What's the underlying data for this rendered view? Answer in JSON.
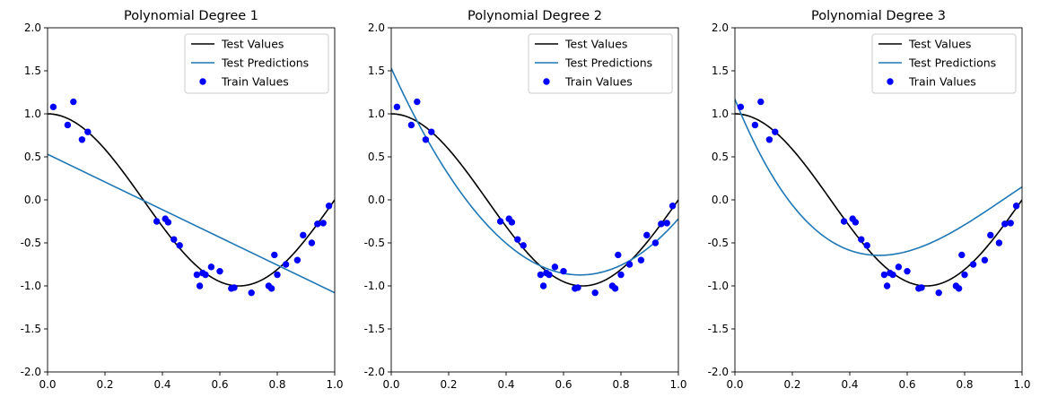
{
  "chart_data": [
    {
      "type": "line",
      "title": "Polynomial Degree 1",
      "xlabel": "",
      "ylabel": "",
      "xlim": [
        0,
        1
      ],
      "ylim": [
        -2,
        2
      ],
      "xticks": [
        "0.0",
        "0.2",
        "0.4",
        "0.6",
        "0.8",
        "1.0"
      ],
      "yticks": [
        "2.0",
        "1.5",
        "1.0",
        "0.5",
        "0.0",
        "-0.5",
        "-1.0",
        "-1.5",
        "-2.0"
      ],
      "grid": false,
      "legend_position": "top-right",
      "series": [
        {
          "name": "Test Values",
          "kind": "line",
          "color": "#000000",
          "function": "cos(1.5*pi*x)"
        },
        {
          "name": "Test Predictions",
          "kind": "line",
          "color": "#1f77b4",
          "x": [
            0,
            1
          ],
          "y": [
            0.53,
            -1.08
          ]
        },
        {
          "name": "Train Values",
          "kind": "scatter",
          "color": "#0000ff",
          "points": [
            [
              0.02,
              1.08
            ],
            [
              0.07,
              0.87
            ],
            [
              0.09,
              1.14
            ],
            [
              0.12,
              0.7
            ],
            [
              0.14,
              0.79
            ],
            [
              0.38,
              -0.25
            ],
            [
              0.41,
              -0.22
            ],
            [
              0.42,
              -0.26
            ],
            [
              0.44,
              -0.46
            ],
            [
              0.46,
              -0.53
            ],
            [
              0.52,
              -0.87
            ],
            [
              0.53,
              -1.0
            ],
            [
              0.54,
              -0.85
            ],
            [
              0.55,
              -0.87
            ],
            [
              0.57,
              -0.78
            ],
            [
              0.6,
              -0.83
            ],
            [
              0.64,
              -1.03
            ],
            [
              0.65,
              -1.02
            ],
            [
              0.71,
              -1.08
            ],
            [
              0.77,
              -1.0
            ],
            [
              0.78,
              -1.03
            ],
            [
              0.79,
              -0.64
            ],
            [
              0.8,
              -0.87
            ],
            [
              0.83,
              -0.75
            ],
            [
              0.87,
              -0.7
            ],
            [
              0.89,
              -0.41
            ],
            [
              0.92,
              -0.5
            ],
            [
              0.94,
              -0.28
            ],
            [
              0.96,
              -0.27
            ],
            [
              0.98,
              -0.07
            ]
          ]
        }
      ]
    },
    {
      "type": "line",
      "title": "Polynomial Degree 2",
      "xlabel": "",
      "ylabel": "",
      "xlim": [
        0,
        1
      ],
      "ylim": [
        -2,
        2
      ],
      "xticks": [
        "0.0",
        "0.2",
        "0.4",
        "0.6",
        "0.8",
        "1.0"
      ],
      "yticks": [
        "2.0",
        "1.5",
        "1.0",
        "0.5",
        "0.0",
        "-0.5",
        "-1.0",
        "-1.5",
        "-2.0"
      ],
      "grid": false,
      "legend_position": "top-right",
      "series": [
        {
          "name": "Test Values",
          "kind": "line",
          "color": "#000000",
          "function": "cos(1.5*pi*x)"
        },
        {
          "name": "Test Predictions",
          "kind": "line",
          "color": "#1f77b4",
          "coefficients": [
            1.53,
            -7.31,
            5.56
          ]
        },
        {
          "name": "Train Values",
          "kind": "scatter",
          "color": "#0000ff",
          "points": [
            [
              0.02,
              1.08
            ],
            [
              0.07,
              0.87
            ],
            [
              0.09,
              1.14
            ],
            [
              0.12,
              0.7
            ],
            [
              0.14,
              0.79
            ],
            [
              0.38,
              -0.25
            ],
            [
              0.41,
              -0.22
            ],
            [
              0.42,
              -0.26
            ],
            [
              0.44,
              -0.46
            ],
            [
              0.46,
              -0.53
            ],
            [
              0.52,
              -0.87
            ],
            [
              0.53,
              -1.0
            ],
            [
              0.54,
              -0.85
            ],
            [
              0.55,
              -0.87
            ],
            [
              0.57,
              -0.78
            ],
            [
              0.6,
              -0.83
            ],
            [
              0.64,
              -1.03
            ],
            [
              0.65,
              -1.02
            ],
            [
              0.71,
              -1.08
            ],
            [
              0.77,
              -1.0
            ],
            [
              0.78,
              -1.03
            ],
            [
              0.79,
              -0.64
            ],
            [
              0.8,
              -0.87
            ],
            [
              0.83,
              -0.75
            ],
            [
              0.87,
              -0.7
            ],
            [
              0.89,
              -0.41
            ],
            [
              0.92,
              -0.5
            ],
            [
              0.94,
              -0.28
            ],
            [
              0.96,
              -0.27
            ],
            [
              0.98,
              -0.07
            ]
          ]
        }
      ]
    },
    {
      "type": "line",
      "title": "Polynomial Degree 3",
      "xlabel": "",
      "ylabel": "",
      "xlim": [
        0,
        1
      ],
      "ylim": [
        -2,
        2
      ],
      "xticks": [
        "0.0",
        "0.2",
        "0.4",
        "0.6",
        "0.8",
        "1.0"
      ],
      "yticks": [
        "2.0",
        "1.5",
        "1.0",
        "0.5",
        "0.0",
        "-0.5",
        "-1.0",
        "-1.5",
        "-2.0"
      ],
      "grid": false,
      "legend_position": "top-right",
      "series": [
        {
          "name": "Test Values",
          "kind": "line",
          "color": "#000000",
          "function": "cos(1.5*pi*x)"
        },
        {
          "name": "Test Predictions",
          "kind": "line",
          "color": "#1f77b4",
          "coefficients": [
            1.17,
            -8.23,
            11.19,
            -3.98
          ]
        },
        {
          "name": "Train Values",
          "kind": "scatter",
          "color": "#0000ff",
          "points": [
            [
              0.02,
              1.08
            ],
            [
              0.07,
              0.87
            ],
            [
              0.09,
              1.14
            ],
            [
              0.12,
              0.7
            ],
            [
              0.14,
              0.79
            ],
            [
              0.38,
              -0.25
            ],
            [
              0.41,
              -0.22
            ],
            [
              0.42,
              -0.26
            ],
            [
              0.44,
              -0.46
            ],
            [
              0.46,
              -0.53
            ],
            [
              0.52,
              -0.87
            ],
            [
              0.53,
              -1.0
            ],
            [
              0.54,
              -0.85
            ],
            [
              0.55,
              -0.87
            ],
            [
              0.57,
              -0.78
            ],
            [
              0.6,
              -0.83
            ],
            [
              0.64,
              -1.03
            ],
            [
              0.65,
              -1.02
            ],
            [
              0.71,
              -1.08
            ],
            [
              0.77,
              -1.0
            ],
            [
              0.78,
              -1.03
            ],
            [
              0.79,
              -0.64
            ],
            [
              0.8,
              -0.87
            ],
            [
              0.83,
              -0.75
            ],
            [
              0.87,
              -0.7
            ],
            [
              0.89,
              -0.41
            ],
            [
              0.92,
              -0.5
            ],
            [
              0.94,
              -0.28
            ],
            [
              0.96,
              -0.27
            ],
            [
              0.98,
              -0.07
            ]
          ]
        }
      ]
    }
  ]
}
